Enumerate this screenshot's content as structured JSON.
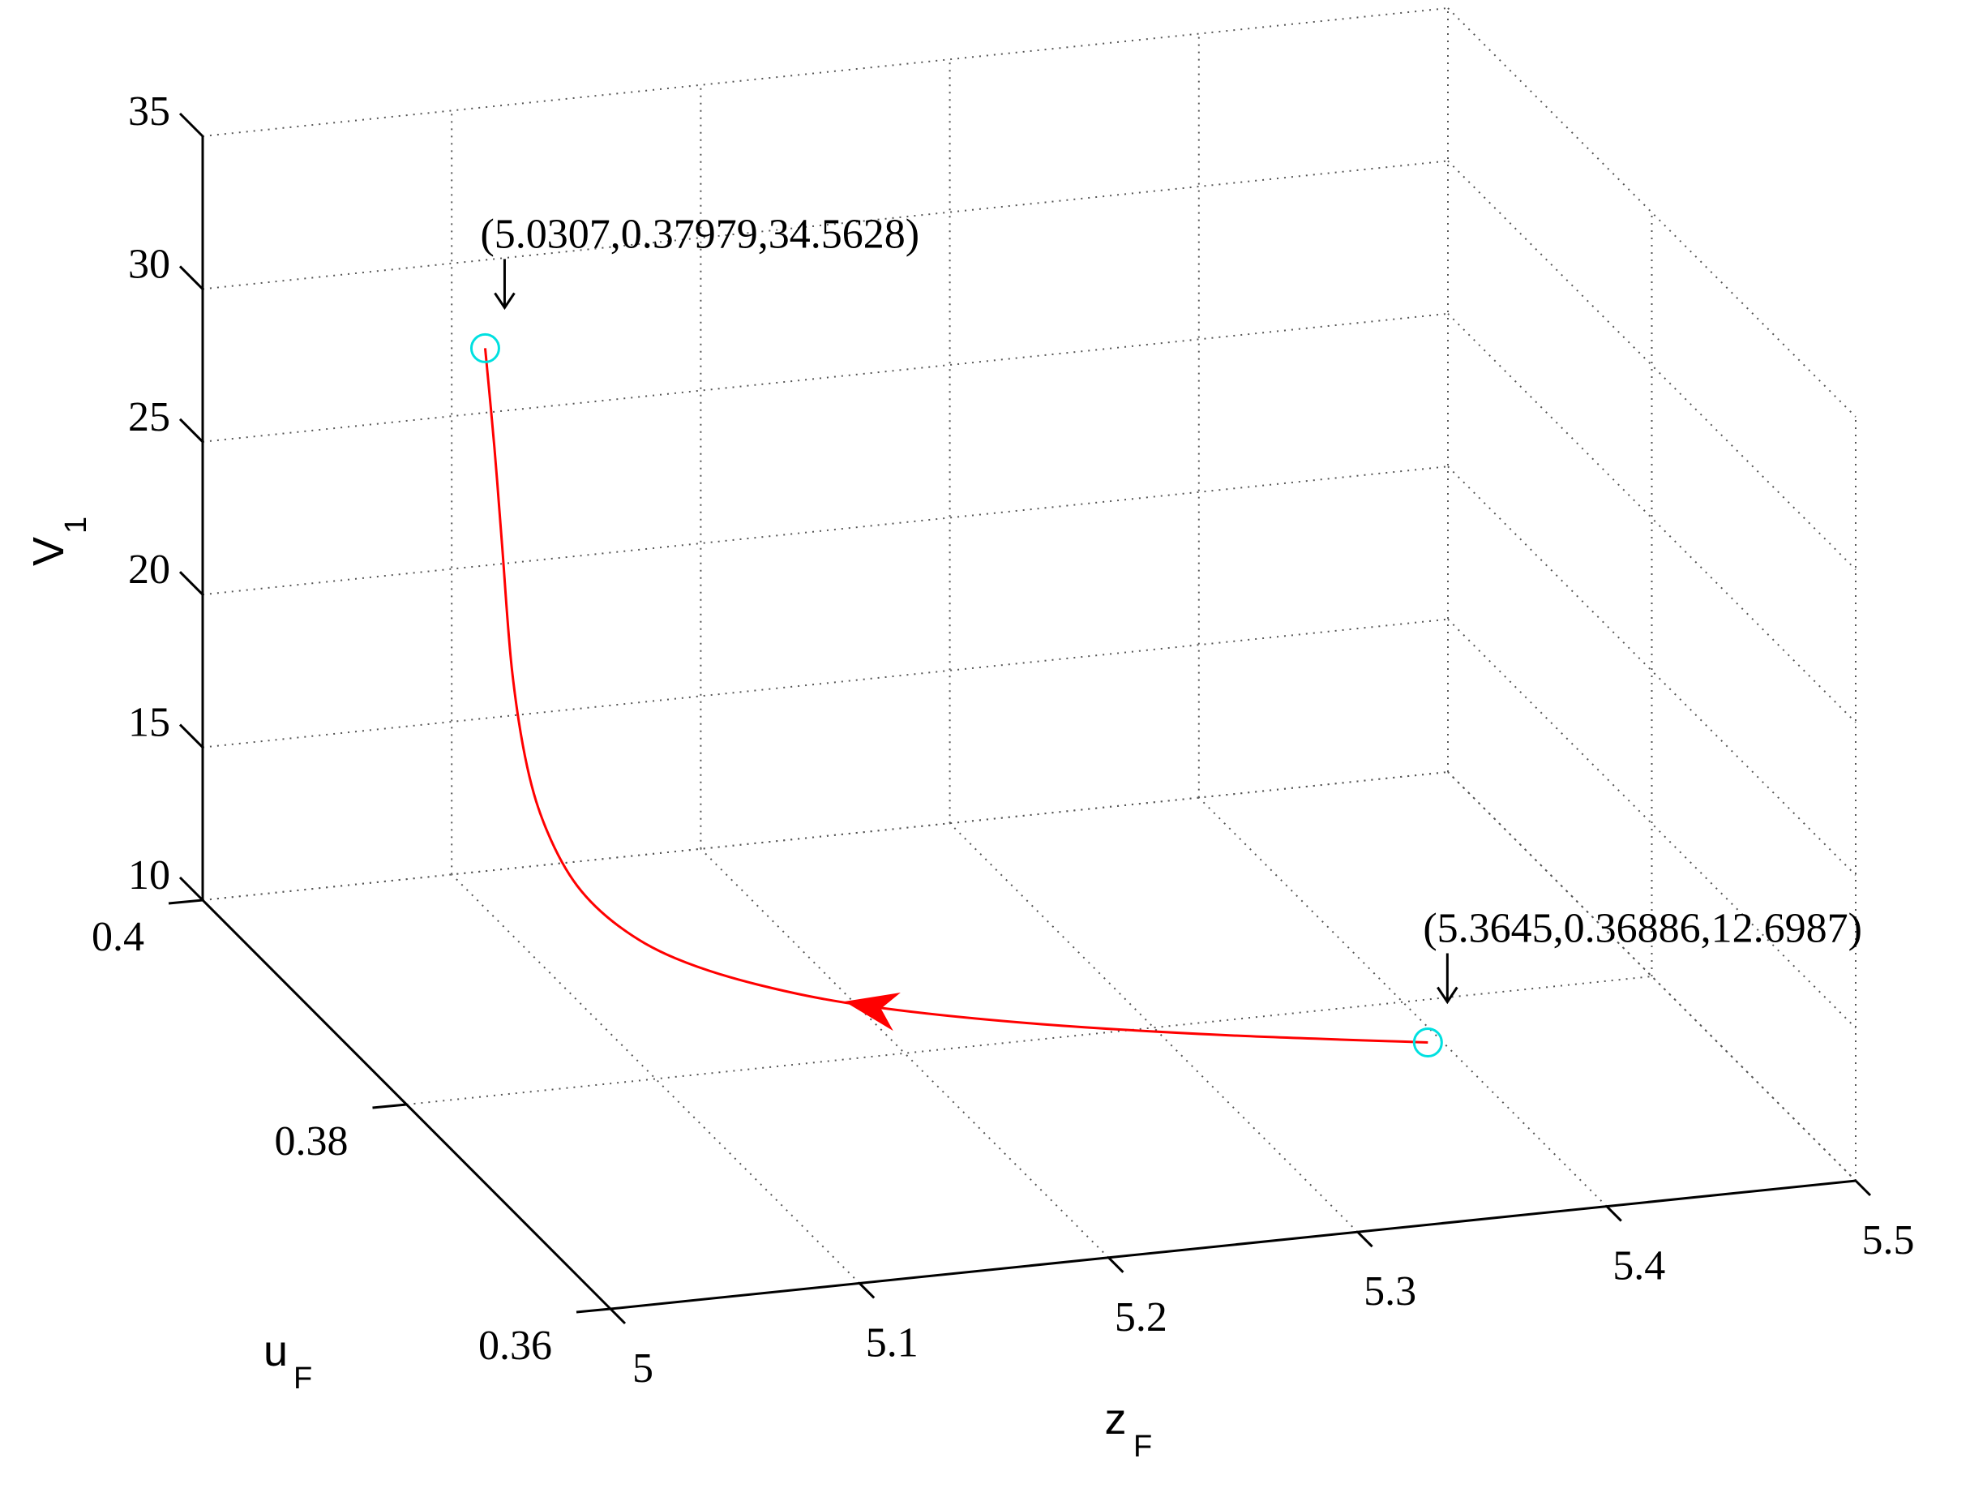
{
  "chart_data": {
    "type": "line3d",
    "xlabel": "z",
    "xlabel_sub": "F",
    "ylabel": "u",
    "ylabel_sub": "F",
    "zlabel": "V",
    "zlabel_sub": "1",
    "xlim": [
      5,
      5.5
    ],
    "ylim": [
      0.36,
      0.4
    ],
    "zlim": [
      10,
      35
    ],
    "xticks": [
      5,
      5.1,
      5.2,
      5.3,
      5.4,
      5.5
    ],
    "xtick_labels": [
      "5",
      "5.1",
      "5.2",
      "5.3",
      "5.4",
      "5.5"
    ],
    "yticks": [
      0.36,
      0.38,
      0.4
    ],
    "ytick_labels": [
      "0.36",
      "0.38",
      "0.4"
    ],
    "zticks": [
      10,
      15,
      20,
      25,
      30,
      35
    ],
    "ztick_labels": [
      "10",
      "15",
      "20",
      "25",
      "30",
      "35"
    ],
    "grid": true,
    "series": [
      {
        "color": "#ff0000",
        "points": [
          [
            5.3645,
            0.36886,
            12.6987
          ],
          [
            5.29,
            0.3707,
            12.95
          ],
          [
            5.22,
            0.3724,
            13.35
          ],
          [
            5.16,
            0.3738,
            13.95
          ],
          [
            5.12,
            0.3748,
            14.65
          ],
          [
            5.09,
            0.3756,
            15.5
          ],
          [
            5.07,
            0.3762,
            16.5
          ],
          [
            5.055,
            0.3767,
            17.8
          ],
          [
            5.045,
            0.3772,
            19.5
          ],
          [
            5.039,
            0.3777,
            21.5
          ],
          [
            5.035,
            0.3782,
            24.5
          ],
          [
            5.033,
            0.3787,
            28.5
          ],
          [
            5.032,
            0.3792,
            31.5
          ],
          [
            5.0307,
            0.37979,
            34.5628
          ]
        ]
      }
    ],
    "direction_arrow_index": 3,
    "annotations": [
      {
        "text": "(5.0307,0.37979,34.5628)",
        "point": [
          5.0307,
          0.37979,
          34.5628
        ],
        "marker_color": "#00e0e0"
      },
      {
        "text": "(5.3645,0.36886,12.6987)",
        "point": [
          5.3645,
          0.36886,
          12.6987
        ],
        "marker_color": "#00e0e0"
      }
    ]
  }
}
